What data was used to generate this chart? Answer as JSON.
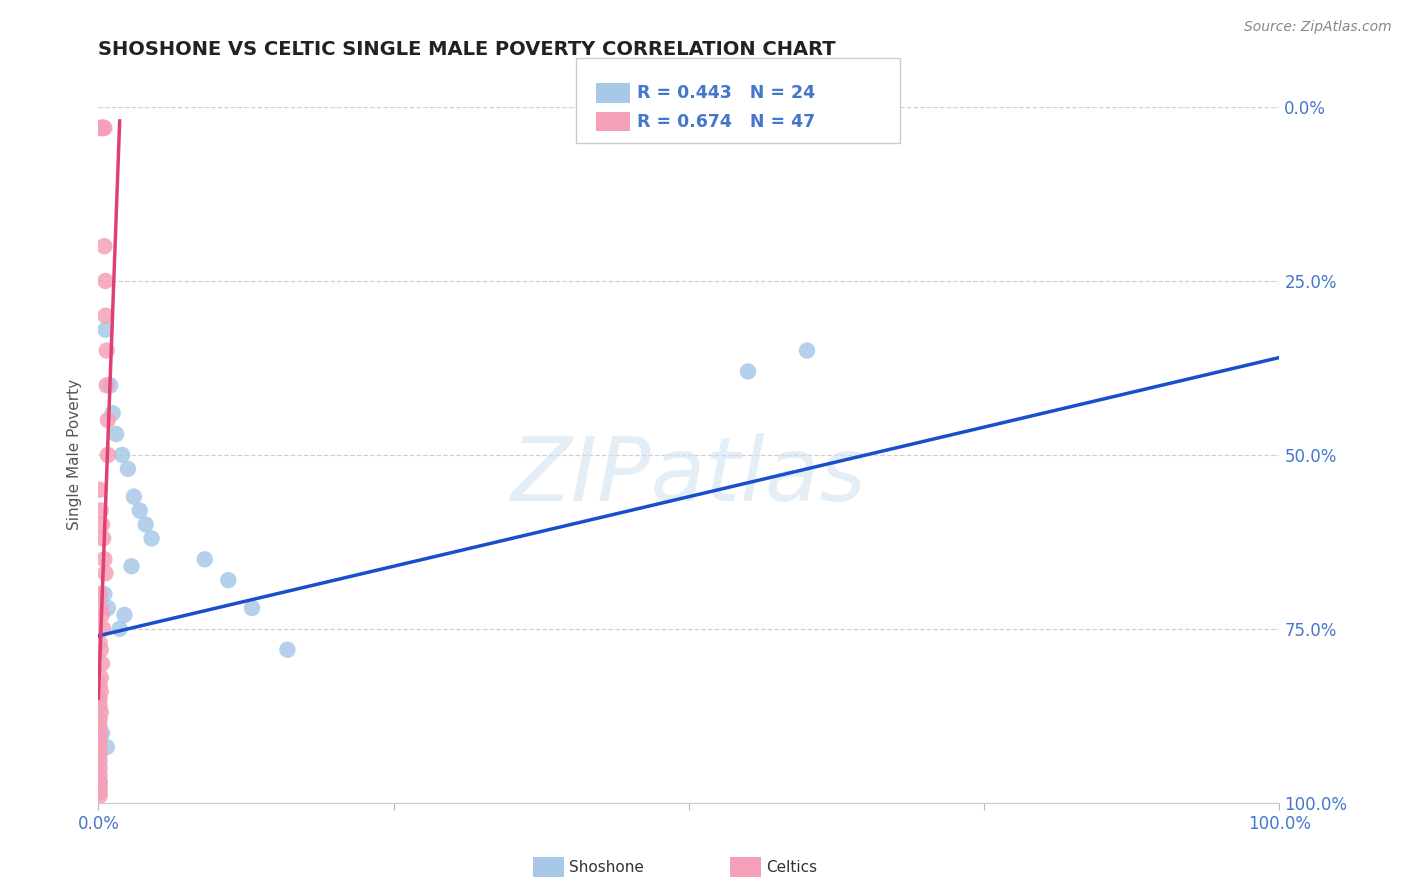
{
  "title": "SHOSHONE VS CELTIC SINGLE MALE POVERTY CORRELATION CHART",
  "source": "Source: ZipAtlas.com",
  "ylabel": "Single Male Poverty",
  "xlim": [
    0.0,
    1.0
  ],
  "ylim": [
    0.0,
    1.0
  ],
  "xticks": [
    0.0,
    0.25,
    0.5,
    0.75,
    1.0
  ],
  "yticks": [
    0.0,
    0.25,
    0.5,
    0.75,
    1.0
  ],
  "xtick_labels_show": [
    "0.0%",
    "",
    "",
    "",
    "100.0%"
  ],
  "ytick_labels_right": [
    "0.0%",
    "25.0%",
    "50.0%",
    "75.0%",
    "100.0%"
  ],
  "shoshone_color": "#a8c8e8",
  "celtics_color": "#f4a0b8",
  "shoshone_line_color": "#1a4fcc",
  "celtics_line_color": "#e04070",
  "R_shoshone": 0.443,
  "N_shoshone": 24,
  "R_celtics": 0.674,
  "N_celtics": 47,
  "shoshone_x": [
    0.006,
    0.01,
    0.012,
    0.015,
    0.02,
    0.025,
    0.03,
    0.035,
    0.04,
    0.045,
    0.005,
    0.008,
    0.022,
    0.018,
    0.028,
    0.55,
    0.6,
    0.003,
    0.007,
    0.09,
    0.11,
    0.13,
    0.16,
    0.001
  ],
  "shoshone_y": [
    0.68,
    0.6,
    0.56,
    0.53,
    0.5,
    0.48,
    0.44,
    0.42,
    0.4,
    0.38,
    0.3,
    0.28,
    0.27,
    0.25,
    0.34,
    0.62,
    0.65,
    0.1,
    0.08,
    0.35,
    0.32,
    0.28,
    0.22,
    0.03
  ],
  "celtics_x": [
    0.001,
    0.002,
    0.003,
    0.003,
    0.004,
    0.004,
    0.005,
    0.005,
    0.006,
    0.006,
    0.007,
    0.007,
    0.008,
    0.008,
    0.001,
    0.002,
    0.003,
    0.004,
    0.005,
    0.006,
    0.001,
    0.002,
    0.003,
    0.004,
    0.001,
    0.002,
    0.003,
    0.002,
    0.001,
    0.002,
    0.001,
    0.001,
    0.002,
    0.001,
    0.001,
    0.001,
    0.001,
    0.001,
    0.001,
    0.001,
    0.001,
    0.001,
    0.001,
    0.001,
    0.001,
    0.001,
    0.001
  ],
  "celtics_y": [
    0.97,
    0.97,
    0.97,
    0.97,
    0.97,
    0.97,
    0.97,
    0.8,
    0.75,
    0.7,
    0.65,
    0.6,
    0.55,
    0.5,
    0.45,
    0.42,
    0.4,
    0.38,
    0.35,
    0.33,
    0.3,
    0.28,
    0.27,
    0.25,
    0.23,
    0.22,
    0.2,
    0.18,
    0.17,
    0.16,
    0.15,
    0.14,
    0.13,
    0.12,
    0.11,
    0.1,
    0.09,
    0.08,
    0.07,
    0.06,
    0.05,
    0.04,
    0.03,
    0.025,
    0.02,
    0.015,
    0.01
  ],
  "shoshone_trend_x": [
    0.0,
    1.0
  ],
  "shoshone_trend_y": [
    0.24,
    0.64
  ],
  "celtics_trend_x": [
    0.0,
    0.018
  ],
  "celtics_trend_y": [
    0.15,
    0.98
  ],
  "watermark_zip": "ZIP",
  "watermark_atlas": "atlas",
  "background_color": "#ffffff",
  "grid_color": "#d0d0d0",
  "tick_color": "#4477cc",
  "title_color": "#222222",
  "source_color": "#888888",
  "ylabel_color": "#555555"
}
